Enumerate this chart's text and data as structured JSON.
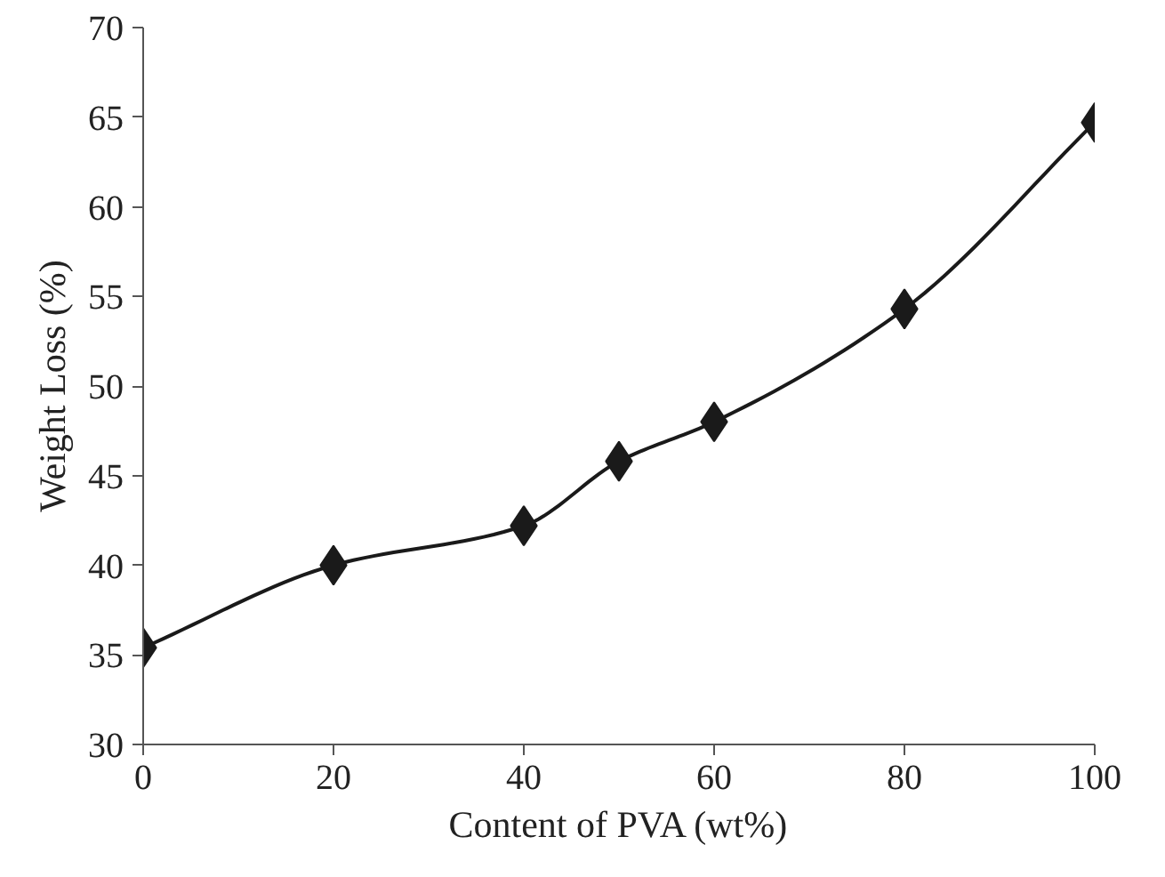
{
  "chart_data": {
    "type": "line",
    "xlabel": "Content of PVA (wt%)",
    "ylabel": "Weight Loss (%)",
    "x": [
      0,
      20,
      40,
      50,
      60,
      80,
      100
    ],
    "series": [
      {
        "color": "#1a1a1a",
        "values": [
          35.4,
          40.0,
          42.2,
          45.8,
          48.0,
          54.3,
          64.7
        ]
      }
    ],
    "xlim": [
      0,
      100
    ],
    "xticks": [
      0,
      20,
      40,
      60,
      80,
      100
    ],
    "ylim": [
      30,
      70
    ],
    "yticks": [
      30,
      35,
      40,
      45,
      50,
      55,
      60,
      65,
      70
    ],
    "grid": false,
    "marker": "diamond",
    "line_style": "solid"
  }
}
